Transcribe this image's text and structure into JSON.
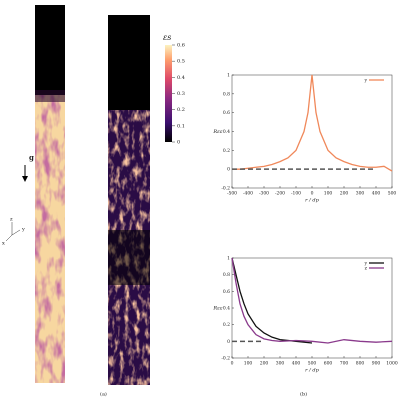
{
  "figure": {
    "panel_a": "(a)",
    "panel_b": "(b)",
    "gravity": "g",
    "axes": [
      "x",
      "y",
      "z"
    ],
    "colorbar": {
      "label": "εs",
      "ticks": [
        0,
        0.1,
        0.2,
        0.3,
        0.4,
        0.5,
        0.6
      ],
      "lim": [
        0,
        0.6
      ]
    }
  },
  "chart_data": [
    {
      "type": "line",
      "xlabel": "r / dp",
      "ylabel": "Rεε",
      "xlim": [
        -500,
        500
      ],
      "xticks": [
        -500,
        -400,
        -300,
        -200,
        -100,
        0,
        100,
        200,
        300,
        400,
        500
      ],
      "ylim": [
        -0.2,
        1
      ],
      "yticks": [
        -0.2,
        0,
        0.2,
        0.4,
        0.6,
        0.8,
        1
      ],
      "legend": "upper right",
      "series": [
        {
          "name": "y",
          "color": "#f0885a",
          "x": [
            -500,
            -450,
            -400,
            -350,
            -300,
            -250,
            -200,
            -150,
            -100,
            -50,
            -25,
            0,
            25,
            50,
            100,
            150,
            200,
            250,
            300,
            350,
            400,
            450,
            500
          ],
          "values": [
            0,
            0,
            0.01,
            0.02,
            0.03,
            0.05,
            0.08,
            0.12,
            0.2,
            0.4,
            0.6,
            1,
            0.6,
            0.4,
            0.2,
            0.12,
            0.08,
            0.05,
            0.03,
            0.02,
            0.02,
            0.03,
            -0.02
          ]
        },
        {
          "color": "#555555",
          "dash": true,
          "x": [
            -500,
            400
          ],
          "values": [
            0,
            0
          ]
        }
      ]
    },
    {
      "type": "line",
      "xlabel": "r / dp",
      "ylabel": "Rεε",
      "xlim": [
        0,
        1000
      ],
      "xticks": [
        0,
        100,
        200,
        300,
        400,
        500,
        600,
        700,
        800,
        900,
        1000
      ],
      "ylim": [
        -0.2,
        1
      ],
      "yticks": [
        -0.2,
        0,
        0.2,
        0.4,
        0.6,
        0.8,
        1
      ],
      "legend": "upper right",
      "series": [
        {
          "name": "y",
          "color": "#111111",
          "x": [
            0,
            25,
            50,
            75,
            100,
            150,
            200,
            250,
            300,
            400,
            500
          ],
          "values": [
            1,
            0.8,
            0.6,
            0.45,
            0.33,
            0.18,
            0.1,
            0.05,
            0.02,
            0,
            -0.02
          ]
        },
        {
          "name": "z",
          "color": "#8a3a8c",
          "x": [
            0,
            25,
            50,
            75,
            100,
            150,
            200,
            250,
            300,
            400,
            500,
            600,
            700,
            800,
            900,
            1000
          ],
          "values": [
            1,
            0.7,
            0.45,
            0.3,
            0.2,
            0.08,
            0.03,
            0.01,
            0,
            0.01,
            0,
            -0.02,
            0.02,
            0,
            -0.01,
            0
          ]
        },
        {
          "color": "#555555",
          "dash": true,
          "x": [
            0,
            200
          ],
          "values": [
            0,
            0
          ]
        }
      ]
    }
  ]
}
